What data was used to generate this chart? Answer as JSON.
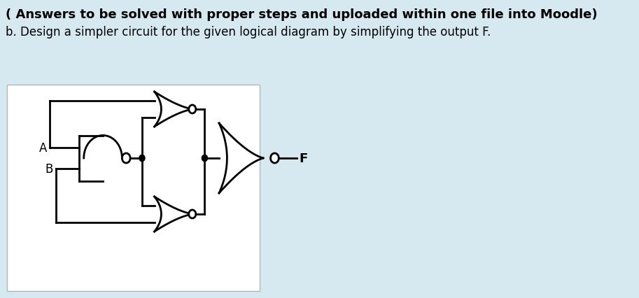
{
  "bg_color": "#d6e8f0",
  "diagram_bg": "#f0f4f6",
  "title_line1": "( Answers to be solved with proper steps and uploaded within one file into Moodle)",
  "title_line2": "b. Design a simpler circuit for the given logical diagram by simplifying the output F.",
  "title_fontsize": 13,
  "subtitle_fontsize": 12,
  "label_A": "A",
  "label_B": "B",
  "label_F": "F"
}
